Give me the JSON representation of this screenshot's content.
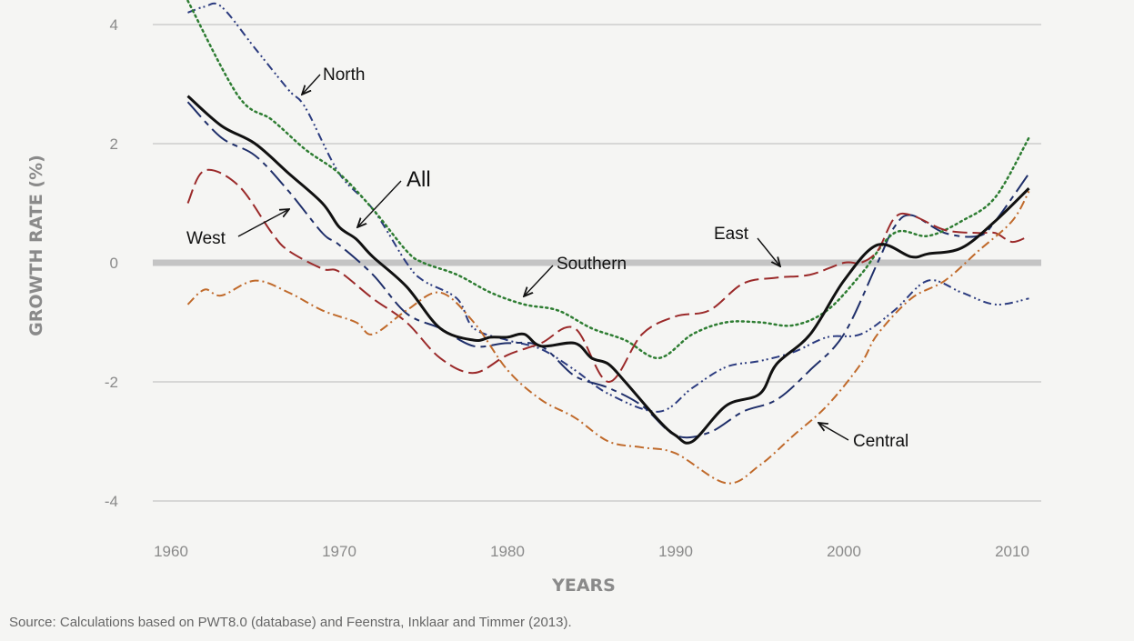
{
  "chart_data": {
    "type": "line",
    "xlabel": "YEARS",
    "ylabel": "GROWTH RATE (%)",
    "xlim": [
      1960,
      2012
    ],
    "ylim": [
      -4,
      4
    ],
    "x_ticks": [
      1960,
      1970,
      1980,
      1990,
      2000,
      2010
    ],
    "y_ticks": [
      4,
      2,
      0,
      -2,
      -4
    ],
    "grid": "horizontal",
    "zero_line": true,
    "series": [
      {
        "name": "All",
        "color": "#111111",
        "dash": "solid",
        "width": 3,
        "points": [
          [
            1961,
            2.8
          ],
          [
            1963,
            2.3
          ],
          [
            1965,
            2.0
          ],
          [
            1967,
            1.5
          ],
          [
            1969,
            1.0
          ],
          [
            1970,
            0.6
          ],
          [
            1971,
            0.4
          ],
          [
            1972,
            0.1
          ],
          [
            1974,
            -0.4
          ],
          [
            1976,
            -1.1
          ],
          [
            1978,
            -1.3
          ],
          [
            1979,
            -1.25
          ],
          [
            1980,
            -1.25
          ],
          [
            1981,
            -1.2
          ],
          [
            1982,
            -1.4
          ],
          [
            1984,
            -1.35
          ],
          [
            1985,
            -1.6
          ],
          [
            1986,
            -1.7
          ],
          [
            1987,
            -2.0
          ],
          [
            1989,
            -2.65
          ],
          [
            1990,
            -2.9
          ],
          [
            1991,
            -3.0
          ],
          [
            1993,
            -2.4
          ],
          [
            1995,
            -2.2
          ],
          [
            1996,
            -1.7
          ],
          [
            1998,
            -1.2
          ],
          [
            2000,
            -0.3
          ],
          [
            2002,
            0.3
          ],
          [
            2004,
            0.1
          ],
          [
            2005,
            0.15
          ],
          [
            2007,
            0.25
          ],
          [
            2009,
            0.7
          ],
          [
            2011,
            1.25
          ]
        ]
      },
      {
        "name": "North",
        "color": "#2b3b7f",
        "dash": "dashdotdot",
        "width": 2,
        "points": [
          [
            1961,
            4.2
          ],
          [
            1962,
            4.3
          ],
          [
            1963,
            4.3
          ],
          [
            1965,
            3.6
          ],
          [
            1967,
            2.9
          ],
          [
            1968,
            2.6
          ],
          [
            1970,
            1.5
          ],
          [
            1972,
            0.9
          ],
          [
            1974,
            0.0
          ],
          [
            1975,
            -0.3
          ],
          [
            1977,
            -0.6
          ],
          [
            1978,
            -1.1
          ],
          [
            1980,
            -1.3
          ],
          [
            1982,
            -1.45
          ],
          [
            1984,
            -1.8
          ],
          [
            1986,
            -2.2
          ],
          [
            1989,
            -2.5
          ],
          [
            1991,
            -2.1
          ],
          [
            1993,
            -1.75
          ],
          [
            1995,
            -1.65
          ],
          [
            1997,
            -1.5
          ],
          [
            1999,
            -1.25
          ],
          [
            2001,
            -1.2
          ],
          [
            2003,
            -0.8
          ],
          [
            2005,
            -0.3
          ],
          [
            2007,
            -0.5
          ],
          [
            2009,
            -0.7
          ],
          [
            2011,
            -0.6
          ]
        ]
      },
      {
        "name": "West",
        "color": "#1f2f6a",
        "dash": "longdash",
        "width": 2,
        "points": [
          [
            1961,
            2.7
          ],
          [
            1963,
            2.1
          ],
          [
            1965,
            1.8
          ],
          [
            1967,
            1.2
          ],
          [
            1969,
            0.5
          ],
          [
            1970,
            0.3
          ],
          [
            1972,
            -0.2
          ],
          [
            1974,
            -0.85
          ],
          [
            1976,
            -1.1
          ],
          [
            1978,
            -1.4
          ],
          [
            1980,
            -1.35
          ],
          [
            1982,
            -1.4
          ],
          [
            1984,
            -1.9
          ],
          [
            1986,
            -2.1
          ],
          [
            1988,
            -2.4
          ],
          [
            1990,
            -2.9
          ],
          [
            1992,
            -2.85
          ],
          [
            1994,
            -2.5
          ],
          [
            1996,
            -2.3
          ],
          [
            1998,
            -1.8
          ],
          [
            2000,
            -1.2
          ],
          [
            2002,
            0.0
          ],
          [
            2003,
            0.6
          ],
          [
            2004,
            0.8
          ],
          [
            2006,
            0.5
          ],
          [
            2008,
            0.45
          ],
          [
            2009,
            0.7
          ],
          [
            2011,
            1.5
          ]
        ]
      },
      {
        "name": "Southern",
        "color": "#2e7d32",
        "dash": "dotted",
        "width": 2.5,
        "points": [
          [
            1961,
            4.4
          ],
          [
            1964,
            2.8
          ],
          [
            1966,
            2.4
          ],
          [
            1968,
            1.9
          ],
          [
            1970,
            1.5
          ],
          [
            1972,
            0.9
          ],
          [
            1974,
            0.2
          ],
          [
            1975,
            0.0
          ],
          [
            1977,
            -0.2
          ],
          [
            1979,
            -0.5
          ],
          [
            1981,
            -0.7
          ],
          [
            1983,
            -0.8
          ],
          [
            1985,
            -1.1
          ],
          [
            1987,
            -1.3
          ],
          [
            1989,
            -1.6
          ],
          [
            1991,
            -1.2
          ],
          [
            1993,
            -1.0
          ],
          [
            1995,
            -1.0
          ],
          [
            1997,
            -1.05
          ],
          [
            1999,
            -0.8
          ],
          [
            2001,
            -0.2
          ],
          [
            2003,
            0.5
          ],
          [
            2005,
            0.45
          ],
          [
            2007,
            0.7
          ],
          [
            2009,
            1.1
          ],
          [
            2011,
            2.1
          ]
        ]
      },
      {
        "name": "East",
        "color": "#9b2a2a",
        "dash": "dash",
        "width": 2,
        "points": [
          [
            1961,
            1.0
          ],
          [
            1962,
            1.55
          ],
          [
            1964,
            1.3
          ],
          [
            1966,
            0.5
          ],
          [
            1967,
            0.2
          ],
          [
            1969,
            -0.1
          ],
          [
            1970,
            -0.15
          ],
          [
            1972,
            -0.6
          ],
          [
            1974,
            -1.0
          ],
          [
            1976,
            -1.6
          ],
          [
            1978,
            -1.85
          ],
          [
            1980,
            -1.55
          ],
          [
            1982,
            -1.35
          ],
          [
            1984,
            -1.1
          ],
          [
            1986,
            -2.0
          ],
          [
            1988,
            -1.2
          ],
          [
            1990,
            -0.9
          ],
          [
            1992,
            -0.8
          ],
          [
            1994,
            -0.35
          ],
          [
            1996,
            -0.25
          ],
          [
            1998,
            -0.2
          ],
          [
            2000,
            0.0
          ],
          [
            2001,
            0.0
          ],
          [
            2002,
            0.2
          ],
          [
            2003,
            0.75
          ],
          [
            2004,
            0.8
          ],
          [
            2006,
            0.55
          ],
          [
            2008,
            0.5
          ],
          [
            2009,
            0.5
          ],
          [
            2010,
            0.35
          ],
          [
            2011,
            0.45
          ]
        ]
      },
      {
        "name": "Central",
        "color": "#c06a2b",
        "dash": "dashdot",
        "width": 2,
        "points": [
          [
            1961,
            -0.7
          ],
          [
            1962,
            -0.45
          ],
          [
            1963,
            -0.55
          ],
          [
            1965,
            -0.3
          ],
          [
            1967,
            -0.5
          ],
          [
            1969,
            -0.8
          ],
          [
            1971,
            -1.0
          ],
          [
            1972,
            -1.2
          ],
          [
            1974,
            -0.8
          ],
          [
            1976,
            -0.5
          ],
          [
            1978,
            -1.0
          ],
          [
            1980,
            -1.8
          ],
          [
            1982,
            -2.3
          ],
          [
            1984,
            -2.6
          ],
          [
            1986,
            -3.0
          ],
          [
            1988,
            -3.1
          ],
          [
            1990,
            -3.2
          ],
          [
            1993,
            -3.7
          ],
          [
            1995,
            -3.4
          ],
          [
            1997,
            -2.9
          ],
          [
            1999,
            -2.4
          ],
          [
            2001,
            -1.7
          ],
          [
            2002,
            -1.2
          ],
          [
            2004,
            -0.6
          ],
          [
            2006,
            -0.3
          ],
          [
            2008,
            0.2
          ],
          [
            2010,
            0.7
          ],
          [
            2011,
            1.2
          ]
        ]
      }
    ],
    "annotations": [
      {
        "series": "North",
        "text": "North"
      },
      {
        "series": "All",
        "text": "All"
      },
      {
        "series": "West",
        "text": "West"
      },
      {
        "series": "Southern",
        "text": "Southern"
      },
      {
        "series": "East",
        "text": "East"
      },
      {
        "series": "Central",
        "text": "Central"
      }
    ]
  },
  "source_note": "Source: Calculations based on PWT8.0 (database) and Feenstra, Inklaar and Timmer (2013)."
}
